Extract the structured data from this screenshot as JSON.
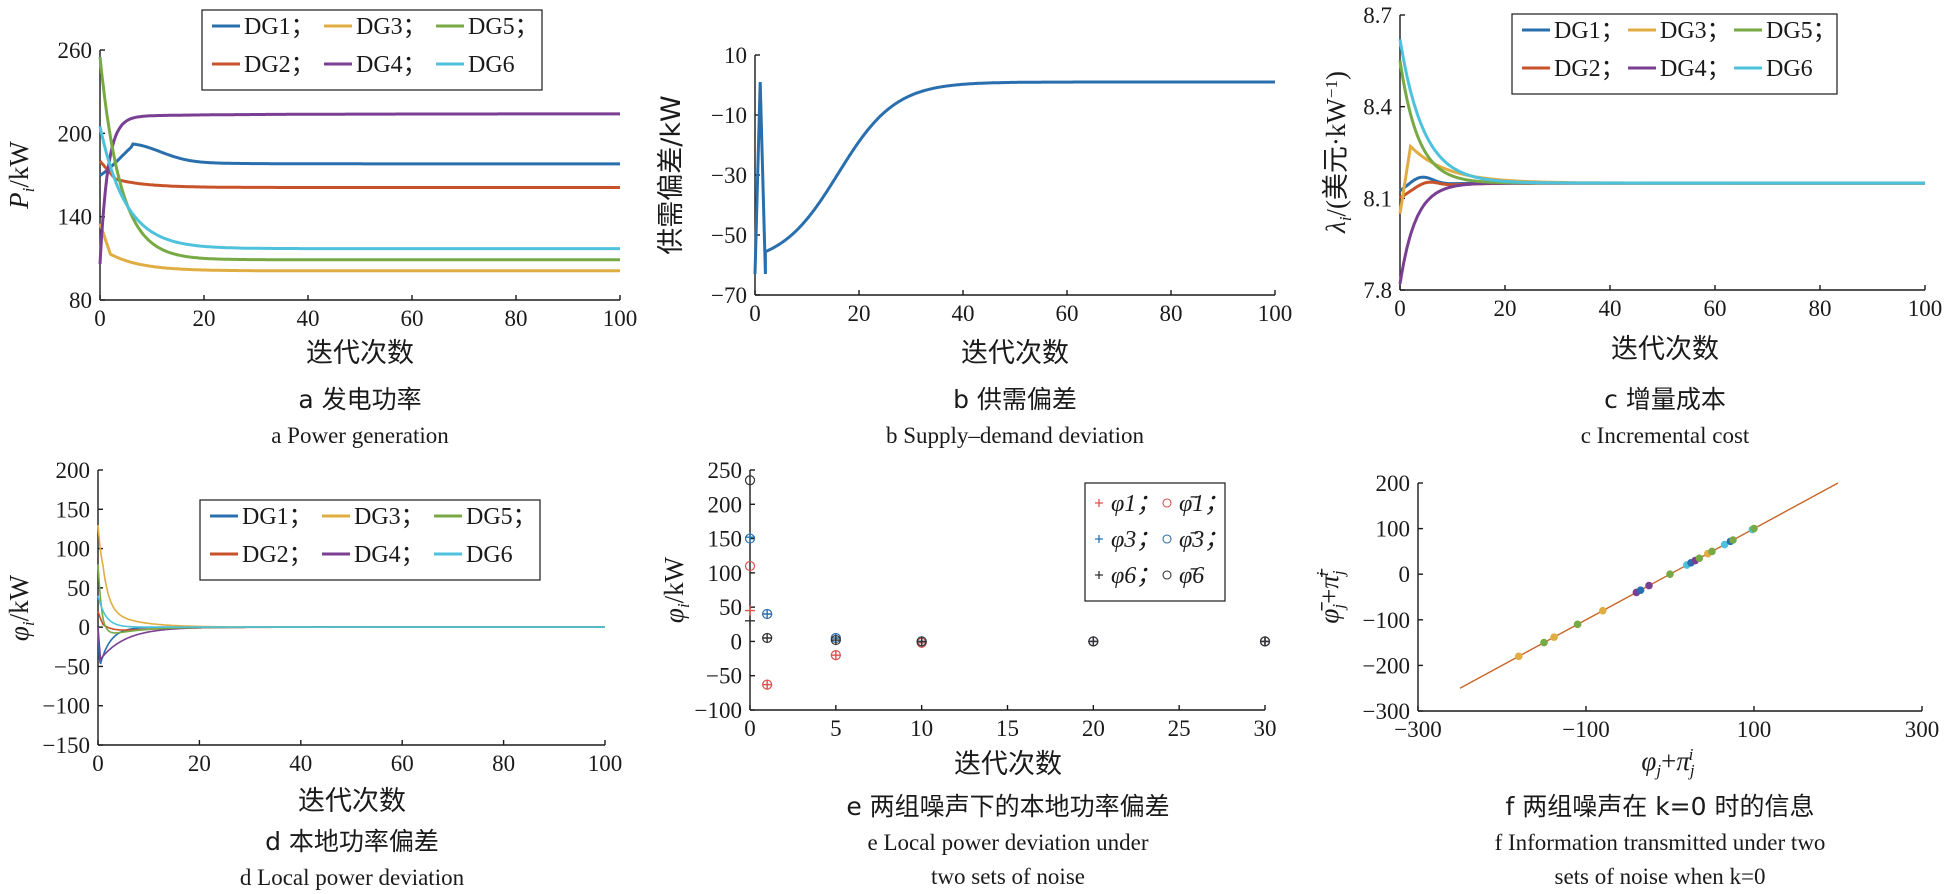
{
  "colors": {
    "DG1": "#2a6fad",
    "DG2": "#c8522a",
    "DG3": "#e0ad42",
    "DG4": "#7a3f92",
    "DG5": "#77aa44",
    "DG6": "#4ec2dc",
    "line_b": "#2a6fad",
    "fit_line": "#c8662a"
  },
  "chart_data": [
    {
      "id": "a",
      "type": "line",
      "ylabel": "P_i/kW",
      "xlabel": "迭代次数",
      "caption_zh": "a 发电功率",
      "caption_en": "a  Power generation",
      "xlim": [
        0,
        100
      ],
      "ylim": [
        80,
        260
      ],
      "xticks": [
        "0",
        "20",
        "40",
        "60",
        "80",
        "100"
      ],
      "yticks": [
        "80",
        "140",
        "200",
        "260"
      ],
      "legend": [
        "DG1；",
        "DG3；",
        "DG5；",
        "DG2；",
        "DG4；",
        "DG6"
      ],
      "series": [
        {
          "name": "DG1",
          "start": 150,
          "peak": 190,
          "final": 178
        },
        {
          "name": "DG2",
          "start": 180,
          "peak": 167,
          "final": 161
        },
        {
          "name": "DG3",
          "start": 135,
          "peak": 113,
          "final": 101
        },
        {
          "name": "DG4",
          "start": 108,
          "peak": 212,
          "final": 214
        },
        {
          "name": "DG5",
          "start": 255,
          "peak": 125,
          "final": 109
        },
        {
          "name": "DG6",
          "start": 205,
          "peak": 130,
          "final": 117
        }
      ]
    },
    {
      "id": "b",
      "type": "line",
      "ylabel": "供需偏差/kW",
      "xlabel": "迭代次数",
      "caption_zh": "b 供需偏差",
      "caption_en": "b  Supply–demand deviation",
      "xlim": [
        0,
        100
      ],
      "ylim": [
        -70,
        10
      ],
      "xticks": [
        "0",
        "20",
        "40",
        "60",
        "80",
        "100"
      ],
      "yticks": [
        "-70",
        "-50",
        "-30",
        "-10",
        "10"
      ],
      "series": [
        {
          "points_start": [
            [
              0,
              -63
            ],
            [
              1,
              1
            ],
            [
              2,
              -63
            ]
          ],
          "final": 1
        }
      ]
    },
    {
      "id": "c",
      "type": "line",
      "ylabel": "λ_i/(美元·kW⁻¹)",
      "xlabel": "迭代次数",
      "caption_zh": "c 增量成本",
      "caption_en": "c  Incremental cost",
      "xlim": [
        0,
        100
      ],
      "ylim": [
        7.8,
        8.7
      ],
      "xticks": [
        "0",
        "20",
        "40",
        "60",
        "80",
        "100"
      ],
      "yticks": [
        "7.8",
        "8.1",
        "8.4",
        "8.7"
      ],
      "legend": [
        "DG1；",
        "DG3；",
        "DG5；",
        "DG2；",
        "DG4；",
        "DG6"
      ],
      "series": [
        {
          "name": "DG1",
          "start": 8.12,
          "final": 8.15
        },
        {
          "name": "DG2",
          "start": 8.1,
          "final": 8.15
        },
        {
          "name": "DG3",
          "start": 8.05,
          "peak": 8.27,
          "final": 8.15
        },
        {
          "name": "DG4",
          "start": 7.82,
          "final": 8.15
        },
        {
          "name": "DG5",
          "start": 8.55,
          "final": 8.15
        },
        {
          "name": "DG6",
          "start": 8.62,
          "final": 8.15
        }
      ]
    },
    {
      "id": "d",
      "type": "line",
      "ylabel": "φ_i/kW",
      "xlabel": "迭代次数",
      "caption_zh": "d 本地功率偏差",
      "caption_en": "d  Local power deviation",
      "xlim": [
        0,
        100
      ],
      "ylim": [
        -150,
        200
      ],
      "xticks": [
        "0",
        "20",
        "40",
        "60",
        "80",
        "100"
      ],
      "yticks": [
        "-150",
        "-100",
        "-50",
        "0",
        "50",
        "100",
        "150",
        "200"
      ],
      "legend": [
        "DG1；",
        "DG3；",
        "DG5；",
        "DG2；",
        "DG4；",
        "DG6"
      ],
      "series": [
        {
          "name": "DG1",
          "start": -60,
          "final": 0
        },
        {
          "name": "DG2",
          "start": 20,
          "final": 0
        },
        {
          "name": "DG3",
          "start": 130,
          "final": 0
        },
        {
          "name": "DG4",
          "start": -45,
          "final": 0
        },
        {
          "name": "DG5",
          "start": 20,
          "final": 0
        },
        {
          "name": "DG6",
          "start": 40,
          "final": 0
        }
      ]
    },
    {
      "id": "e",
      "type": "scatter",
      "ylabel": "φ_i/kW",
      "xlabel": "迭代次数",
      "caption_zh": "e 两组噪声下的本地功率偏差",
      "caption_en_1": "e  Local power deviation under",
      "caption_en_2": "two sets of noise",
      "xlim": [
        0,
        30
      ],
      "ylim": [
        -100,
        250
      ],
      "xticks": [
        "0",
        "5",
        "10",
        "15",
        "20",
        "25",
        "30"
      ],
      "yticks": [
        "-100",
        "-50",
        "0",
        "50",
        "100",
        "150",
        "200",
        "250"
      ],
      "legend": [
        "φ1；",
        "φ̄1；",
        "φ3；",
        "φ̄3；",
        "φ6；",
        "φ̄6"
      ],
      "series": [
        {
          "name": "φ1",
          "marker": "plus",
          "color": "#d9534f",
          "points": [
            [
              0,
              45
            ],
            [
              1,
              -63
            ],
            [
              5,
              -20
            ],
            [
              10,
              -2
            ],
            [
              20,
              0
            ],
            [
              30,
              0
            ]
          ]
        },
        {
          "name": "φ̄1",
          "marker": "circle",
          "color": "#d9534f",
          "points": [
            [
              0,
              110
            ],
            [
              1,
              -63
            ],
            [
              5,
              -20
            ],
            [
              10,
              -2
            ],
            [
              20,
              0
            ],
            [
              30,
              0
            ]
          ]
        },
        {
          "name": "φ3",
          "marker": "plus",
          "color": "#2a6fad",
          "points": [
            [
              0,
              152
            ],
            [
              1,
              40
            ],
            [
              5,
              5
            ],
            [
              10,
              0
            ],
            [
              20,
              0
            ],
            [
              30,
              0
            ]
          ]
        },
        {
          "name": "φ̄3",
          "marker": "circle",
          "color": "#2a6fad",
          "points": [
            [
              0,
              150
            ],
            [
              1,
              40
            ],
            [
              5,
              5
            ],
            [
              10,
              0
            ],
            [
              20,
              0
            ],
            [
              30,
              0
            ]
          ]
        },
        {
          "name": "φ6",
          "marker": "plus",
          "color": "#333333",
          "points": [
            [
              0,
              30
            ],
            [
              1,
              5
            ],
            [
              5,
              2
            ],
            [
              10,
              0
            ],
            [
              20,
              0
            ],
            [
              30,
              0
            ]
          ]
        },
        {
          "name": "φ̄6",
          "marker": "circle",
          "color": "#333333",
          "points": [
            [
              0,
              235
            ],
            [
              1,
              5
            ],
            [
              5,
              2
            ],
            [
              10,
              0
            ],
            [
              20,
              0
            ],
            [
              30,
              0
            ]
          ]
        }
      ]
    },
    {
      "id": "f",
      "type": "scatter",
      "ylabel": "φ̄_j+π̄_j^i",
      "xlabel": "φ_j+π_j^i",
      "caption_zh": "f 两组噪声在 k=0 时的信息",
      "caption_en_1": "f  Information transmitted under two",
      "caption_en_2": "sets of noise when k=0",
      "xlim": [
        -300,
        300
      ],
      "ylim": [
        -300,
        200
      ],
      "xticks": [
        "-300",
        "-100",
        "100",
        "300"
      ],
      "yticks": [
        "-300",
        "-200",
        "-100",
        "0",
        "100",
        "200"
      ],
      "line": [
        [
          -250,
          -250
        ],
        [
          200,
          200
        ]
      ],
      "points": [
        {
          "v": -180,
          "c": "#e0ad42"
        },
        {
          "v": -150,
          "c": "#77aa44"
        },
        {
          "v": -138,
          "c": "#e0ad42"
        },
        {
          "v": -110,
          "c": "#77aa44"
        },
        {
          "v": -80,
          "c": "#e0ad42"
        },
        {
          "v": -40,
          "c": "#7a3f92"
        },
        {
          "v": -35,
          "c": "#2a6fad"
        },
        {
          "v": -25,
          "c": "#7a3f92"
        },
        {
          "v": 0,
          "c": "#77aa44"
        },
        {
          "v": 20,
          "c": "#4ec2dc"
        },
        {
          "v": 25,
          "c": "#2a6fad"
        },
        {
          "v": 30,
          "c": "#7a3f92"
        },
        {
          "v": 35,
          "c": "#77aa44"
        },
        {
          "v": 45,
          "c": "#e0ad42"
        },
        {
          "v": 50,
          "c": "#77aa44"
        },
        {
          "v": 65,
          "c": "#4ec2dc"
        },
        {
          "v": 72,
          "c": "#2a6fad"
        },
        {
          "v": 75,
          "c": "#77aa44"
        },
        {
          "v": 98,
          "c": "#4ec2dc"
        },
        {
          "v": 100,
          "c": "#77aa44"
        }
      ]
    }
  ]
}
